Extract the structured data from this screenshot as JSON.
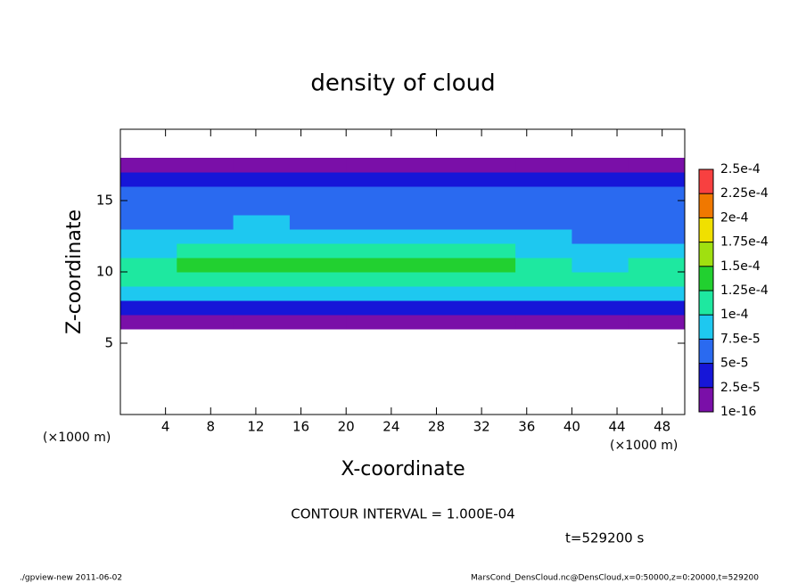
{
  "chart_data": {
    "type": "heatmap",
    "title": "density of cloud",
    "x_label": "X-coordinate",
    "y_label": "Z-coordinate",
    "x_unit": "(×1000 m)",
    "contour_note": "CONTOUR INTERVAL = 1.000E-04",
    "time_note": "t=529200 s",
    "footer_left": "./gpview-new  2011-06-02",
    "footer_right": "MarsCond_DensCloud.nc@DensCloud,x=0:50000,z=0:20000,t=529200",
    "xlim": [
      0,
      50
    ],
    "ylim": [
      0,
      20
    ],
    "xticks": [
      4,
      8,
      12,
      16,
      20,
      24,
      28,
      32,
      36,
      40,
      44,
      48
    ],
    "yticks": [
      5,
      10,
      15
    ],
    "x": [
      2.5,
      7.5,
      12.5,
      17.5,
      22.5,
      27.5,
      32.5,
      37.5,
      42.5,
      47.5
    ],
    "y": [
      6.5,
      7.5,
      8.5,
      9.5,
      10.5,
      11.5,
      12.5,
      13.5,
      14.5,
      15.5,
      16.5,
      17.5
    ],
    "values": [
      [
        1.5e-05,
        1.5e-05,
        1.5e-05,
        1.5e-05,
        1.5e-05,
        1.5e-05,
        1.5e-05,
        1.5e-05,
        1.5e-05,
        1.5e-05
      ],
      [
        4e-05,
        4e-05,
        3.5e-05,
        4e-05,
        4e-05,
        4e-05,
        4e-05,
        4e-05,
        4e-05,
        4e-05
      ],
      [
        8e-05,
        8.5e-05,
        8e-05,
        8e-05,
        8.5e-05,
        8e-05,
        8e-05,
        8e-05,
        8e-05,
        8.5e-05
      ],
      [
        0.000115,
        0.00012,
        0.00012,
        0.000115,
        0.00012,
        0.00012,
        0.000115,
        0.00011,
        0.000105,
        0.00011
      ],
      [
        0.000115,
        0.00013,
        0.00013,
        0.000125,
        0.00013,
        0.00013,
        0.000125,
        0.00011,
        9.5e-05,
        0.000105
      ],
      [
        9e-05,
        0.000105,
        0.00011,
        0.000105,
        0.000105,
        0.00011,
        0.000105,
        9e-05,
        8e-05,
        8.5e-05
      ],
      [
        8e-05,
        8.5e-05,
        8.5e-05,
        8.5e-05,
        8.5e-05,
        8.5e-05,
        8.5e-05,
        8e-05,
        6e-05,
        7e-05
      ],
      [
        7e-05,
        7e-05,
        7.5e-05,
        7e-05,
        7e-05,
        7e-05,
        7e-05,
        6.5e-05,
        5.5e-05,
        6.5e-05
      ],
      [
        6e-05,
        6e-05,
        6e-05,
        6e-05,
        6e-05,
        6e-05,
        6e-05,
        6e-05,
        5.5e-05,
        6e-05
      ],
      [
        5e-05,
        5.5e-05,
        5e-05,
        5e-05,
        5e-05,
        5e-05,
        5e-05,
        5e-05,
        5e-05,
        5e-05
      ],
      [
        3e-05,
        3e-05,
        3e-05,
        3e-05,
        3e-05,
        3e-05,
        3e-05,
        3e-05,
        3e-05,
        3e-05
      ],
      [
        1e-05,
        1e-05,
        1e-05,
        1e-05,
        1e-05,
        1e-05,
        1e-05,
        1e-05,
        1e-05,
        1e-05
      ]
    ],
    "levels": [
      {
        "value": 1e-16,
        "label": "1e-16"
      },
      {
        "value": 2.5e-05,
        "label": "2.5e-5"
      },
      {
        "value": 5e-05,
        "label": "5e-5"
      },
      {
        "value": 7.5e-05,
        "label": "7.5e-5"
      },
      {
        "value": 0.0001,
        "label": "1e-4"
      },
      {
        "value": 0.000125,
        "label": "1.25e-4"
      },
      {
        "value": 0.00015,
        "label": "1.5e-4"
      },
      {
        "value": 0.000175,
        "label": "1.75e-4"
      },
      {
        "value": 0.0002,
        "label": "2e-4"
      },
      {
        "value": 0.000225,
        "label": "2.25e-4"
      },
      {
        "value": 0.00025,
        "label": "2.5e-4"
      }
    ],
    "colors": [
      "#7a0fa8",
      "#1616d8",
      "#2a6af0",
      "#1ec8f0",
      "#1ee8a0",
      "#22d030",
      "#a0e010",
      "#f0e000",
      "#f07800",
      "#f84040"
    ]
  }
}
